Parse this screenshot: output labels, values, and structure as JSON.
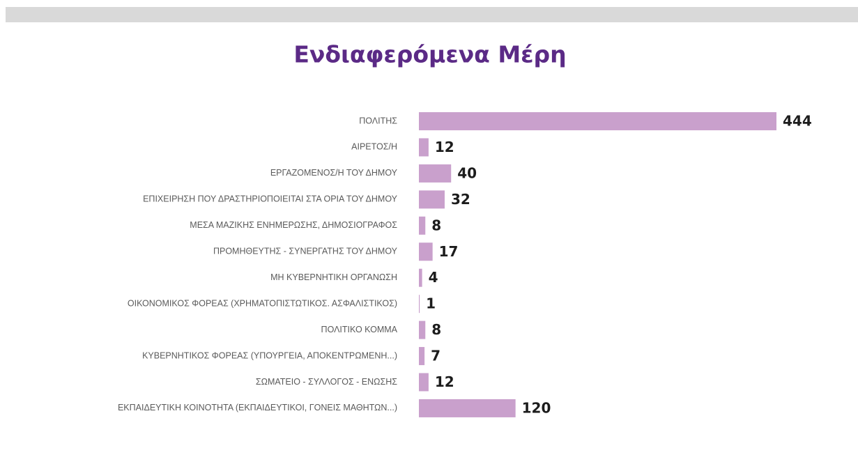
{
  "chart_data": {
    "type": "bar",
    "orientation": "horizontal",
    "title": "Ενδιαφερόμενα Μέρη",
    "categories": [
      "ΠΟΛΙΤΗΣ",
      "ΑΙΡΕΤΟΣ/Η",
      "ΕΡΓΑΖΟΜΕΝΟΣ/Η ΤΟΥ ΔΗΜΟΥ",
      "ΕΠΙΧΕΙΡΗΣΗ ΠΟΥ ΔΡΑΣΤΗΡΙΟΠΟΙΕΙΤΑΙ ΣΤΑ ΟΡΙΑ ΤΟΥ ΔΗΜΟΥ",
      "ΜΕΣΑ ΜΑΖΙΚΗΣ ΕΝΗΜΕΡΩΣΗΣ, ΔΗΜΟΣΙΟΓΡΑΦΟΣ",
      "ΠΡΟΜΗΘΕΥΤΗΣ - ΣΥΝΕΡΓΑΤΗΣ ΤΟΥ ΔΗΜΟΥ",
      "ΜΗ ΚΥΒΕΡΝΗΤΙΚΗ ΟΡΓΑΝΩΣΗ",
      "ΟΙΚΟΝΟΜΙΚΟΣ ΦΟΡΕΑΣ (ΧΡΗΜΑΤΟΠΙΣΤΩΤΙΚΟΣ. ΑΣΦΑΛΙΣΤΙΚΟΣ)",
      "ΠΟΛΙΤΙΚΟ ΚΟΜΜΑ",
      "ΚΥΒΕΡΝΗΤΙΚΟΣ ΦΟΡΕΑΣ (ΥΠΟΥΡΓΕΙΑ, ΑΠΟΚΕΝΤΡΩΜΕΝΗ...)",
      "ΣΩΜΑΤΕΙΟ - ΣΥΛΛΟΓΟΣ - ΕΝΩΣΗΣ",
      "ΕΚΠΑΙΔΕΥΤΙΚΗ ΚΟΙΝΟΤΗΤΑ (ΕΚΠΑΙΔΕΥΤΙΚΟΙ, ΓΟΝΕΙΣ ΜΑΘΗΤΩΝ...)"
    ],
    "values": [
      444,
      12,
      40,
      32,
      8,
      17,
      4,
      1,
      8,
      7,
      12,
      120
    ],
    "color": "#c9a0cc"
  }
}
